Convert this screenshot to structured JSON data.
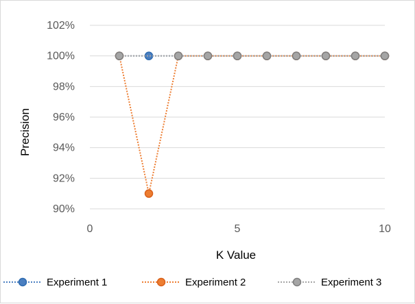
{
  "chart_data": {
    "type": "line",
    "title": "",
    "xlabel": "K Value",
    "ylabel": "Precision",
    "xlim": [
      0,
      10
    ],
    "ylim": [
      90,
      102
    ],
    "x_ticks": [
      0,
      5,
      10
    ],
    "y_ticks": [
      90,
      92,
      94,
      96,
      98,
      100,
      102
    ],
    "y_tick_labels": [
      "90%",
      "92%",
      "94%",
      "96%",
      "98%",
      "100%",
      "102%"
    ],
    "x": [
      1,
      2,
      3,
      4,
      5,
      6,
      7,
      8,
      9,
      10
    ],
    "grid": "horizontal",
    "legend_position": "bottom",
    "series": [
      {
        "name": "Experiment 1",
        "values": [
          100,
          100,
          100,
          100,
          100,
          100,
          100,
          100,
          100,
          100
        ],
        "color": "#4a7fc1",
        "marker_edge": "#2e6bb0"
      },
      {
        "name": "Experiment 2",
        "values": [
          100,
          91,
          100,
          100,
          100,
          100,
          100,
          100,
          100,
          100
        ],
        "color": "#ed7d31",
        "marker_edge": "#d9601a"
      },
      {
        "name": "Experiment 3",
        "values": [
          100,
          null,
          100,
          100,
          100,
          100,
          100,
          100,
          100,
          100
        ],
        "color": "#a5a5a5",
        "marker_edge": "#7f7f7f"
      }
    ]
  }
}
